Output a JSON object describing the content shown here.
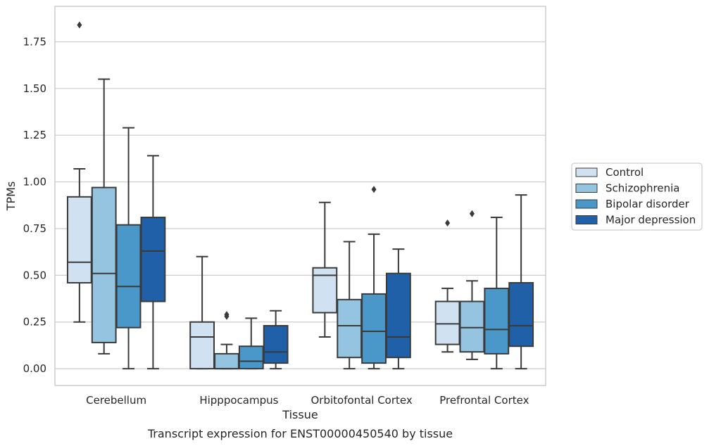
{
  "chart_data": {
    "type": "box",
    "caption": "Transcript expression for ENST00000450540 by tissue",
    "xlabel": "Tissue",
    "ylabel": "TPMs",
    "ylim": [
      -0.09,
      1.94
    ],
    "yticks": [
      "0.00",
      "0.25",
      "0.50",
      "0.75",
      "1.00",
      "1.25",
      "1.50",
      "1.75"
    ],
    "grid": "horizontal",
    "legend_position": "right",
    "categories": [
      "Cerebellum",
      "Hipppocampus",
      "Orbitofontal Cortex",
      "Prefrontal Cortex"
    ],
    "series": [
      {
        "name": "Control",
        "color": "#d0e1f2",
        "boxes": [
          {
            "whislo": 0.25,
            "q1": 0.46,
            "med": 0.57,
            "q3": 0.92,
            "whishi": 1.07,
            "fliers": [
              1.84
            ]
          },
          {
            "whislo": 0.0,
            "q1": 0.0,
            "med": 0.17,
            "q3": 0.25,
            "whishi": 0.6,
            "fliers": []
          },
          {
            "whislo": 0.17,
            "q1": 0.3,
            "med": 0.5,
            "q3": 0.54,
            "whishi": 0.89,
            "fliers": []
          },
          {
            "whislo": 0.09,
            "q1": 0.13,
            "med": 0.24,
            "q3": 0.36,
            "whishi": 0.43,
            "fliers": [
              0.78
            ]
          }
        ]
      },
      {
        "name": "Schizophrenia",
        "color": "#94c4df",
        "boxes": [
          {
            "whislo": 0.08,
            "q1": 0.14,
            "med": 0.51,
            "q3": 0.97,
            "whishi": 1.55,
            "fliers": []
          },
          {
            "whislo": 0.0,
            "q1": 0.0,
            "med": 0.0,
            "q3": 0.08,
            "whishi": 0.13,
            "fliers": [
              0.28,
              0.29
            ]
          },
          {
            "whislo": 0.0,
            "q1": 0.06,
            "med": 0.23,
            "q3": 0.37,
            "whishi": 0.68,
            "fliers": []
          },
          {
            "whislo": 0.05,
            "q1": 0.09,
            "med": 0.22,
            "q3": 0.36,
            "whishi": 0.47,
            "fliers": [
              0.83
            ]
          }
        ]
      },
      {
        "name": "Bipolar disorder",
        "color": "#4a98c9",
        "boxes": [
          {
            "whislo": 0.0,
            "q1": 0.22,
            "med": 0.44,
            "q3": 0.77,
            "whishi": 1.29,
            "fliers": []
          },
          {
            "whislo": 0.0,
            "q1": 0.0,
            "med": 0.04,
            "q3": 0.12,
            "whishi": 0.27,
            "fliers": []
          },
          {
            "whislo": 0.0,
            "q1": 0.03,
            "med": 0.2,
            "q3": 0.4,
            "whishi": 0.72,
            "fliers": [
              0.96
            ]
          },
          {
            "whislo": 0.0,
            "q1": 0.08,
            "med": 0.21,
            "q3": 0.43,
            "whishi": 0.81,
            "fliers": []
          }
        ]
      },
      {
        "name": "Major depression",
        "color": "#2060a8",
        "boxes": [
          {
            "whislo": 0.0,
            "q1": 0.36,
            "med": 0.63,
            "q3": 0.81,
            "whishi": 1.14,
            "fliers": []
          },
          {
            "whislo": 0.0,
            "q1": 0.03,
            "med": 0.09,
            "q3": 0.23,
            "whishi": 0.31,
            "fliers": []
          },
          {
            "whislo": 0.0,
            "q1": 0.06,
            "med": 0.17,
            "q3": 0.51,
            "whishi": 0.64,
            "fliers": []
          },
          {
            "whislo": 0.0,
            "q1": 0.12,
            "med": 0.23,
            "q3": 0.46,
            "whishi": 0.93,
            "fliers": []
          }
        ]
      }
    ],
    "line_color": "#3a3a3a",
    "grid_color": "#cccccc"
  }
}
